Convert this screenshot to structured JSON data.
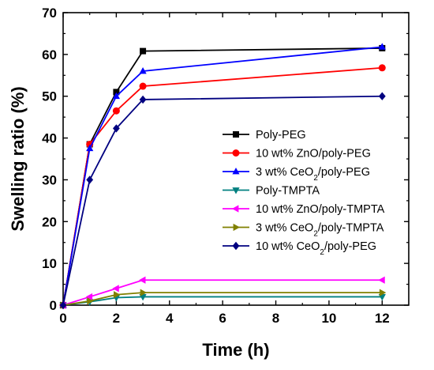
{
  "chart_data": {
    "type": "line",
    "xlabel": "Time (h)",
    "ylabel": "Swelling ratio (%)",
    "xlim": [
      0,
      13
    ],
    "ylim": [
      0,
      70
    ],
    "xticks": [
      "0",
      "2",
      "4",
      "6",
      "8",
      "10",
      "12"
    ],
    "yticks": [
      "0",
      "10",
      "20",
      "30",
      "40",
      "50",
      "60",
      "70"
    ],
    "grid": false,
    "legend_position": "center-right",
    "series": [
      {
        "name": "Poly-PEG",
        "color": "#000000",
        "marker": "square",
        "points": [
          [
            0,
            0
          ],
          [
            1,
            38.5
          ],
          [
            2,
            51
          ],
          [
            3,
            60.8
          ],
          [
            12,
            61.5
          ]
        ]
      },
      {
        "name": "10 wt% ZnO/poly-PEG",
        "color": "#ff0000",
        "marker": "circle",
        "points": [
          [
            0,
            0
          ],
          [
            1,
            38.5
          ],
          [
            2,
            46.5
          ],
          [
            3,
            52.4
          ],
          [
            12,
            56.8
          ]
        ]
      },
      {
        "name": "3 wt% CeO2/poly-PEG",
        "color": "#0000ff",
        "marker": "triangle-up",
        "points": [
          [
            0,
            0
          ],
          [
            1,
            37.5
          ],
          [
            2,
            50
          ],
          [
            3,
            56
          ],
          [
            12,
            61.8
          ]
        ]
      },
      {
        "name": "Poly-TMPTA",
        "color": "#008080",
        "marker": "triangle-down",
        "points": [
          [
            0,
            0
          ],
          [
            1,
            0.8
          ],
          [
            2,
            1.8
          ],
          [
            3,
            2
          ],
          [
            12,
            2
          ]
        ]
      },
      {
        "name": "10 wt% ZnO/poly-TMPTA",
        "color": "#ff00ff",
        "marker": "triangle-left",
        "points": [
          [
            0,
            0
          ],
          [
            1,
            2
          ],
          [
            2,
            4
          ],
          [
            3,
            6
          ],
          [
            12,
            6
          ]
        ]
      },
      {
        "name": "3 wt% CeO2/poly-TMPTA",
        "color": "#808000",
        "marker": "triangle-right",
        "points": [
          [
            0,
            0
          ],
          [
            1,
            1
          ],
          [
            2,
            2.5
          ],
          [
            3,
            3
          ],
          [
            12,
            3
          ]
        ]
      },
      {
        "name": "10 wt% CeO2/poly-PEG",
        "color": "#000080",
        "marker": "diamond",
        "points": [
          [
            0,
            0
          ],
          [
            1,
            30
          ],
          [
            2,
            42.3
          ],
          [
            3,
            49.2
          ],
          [
            12,
            50
          ]
        ]
      }
    ]
  }
}
